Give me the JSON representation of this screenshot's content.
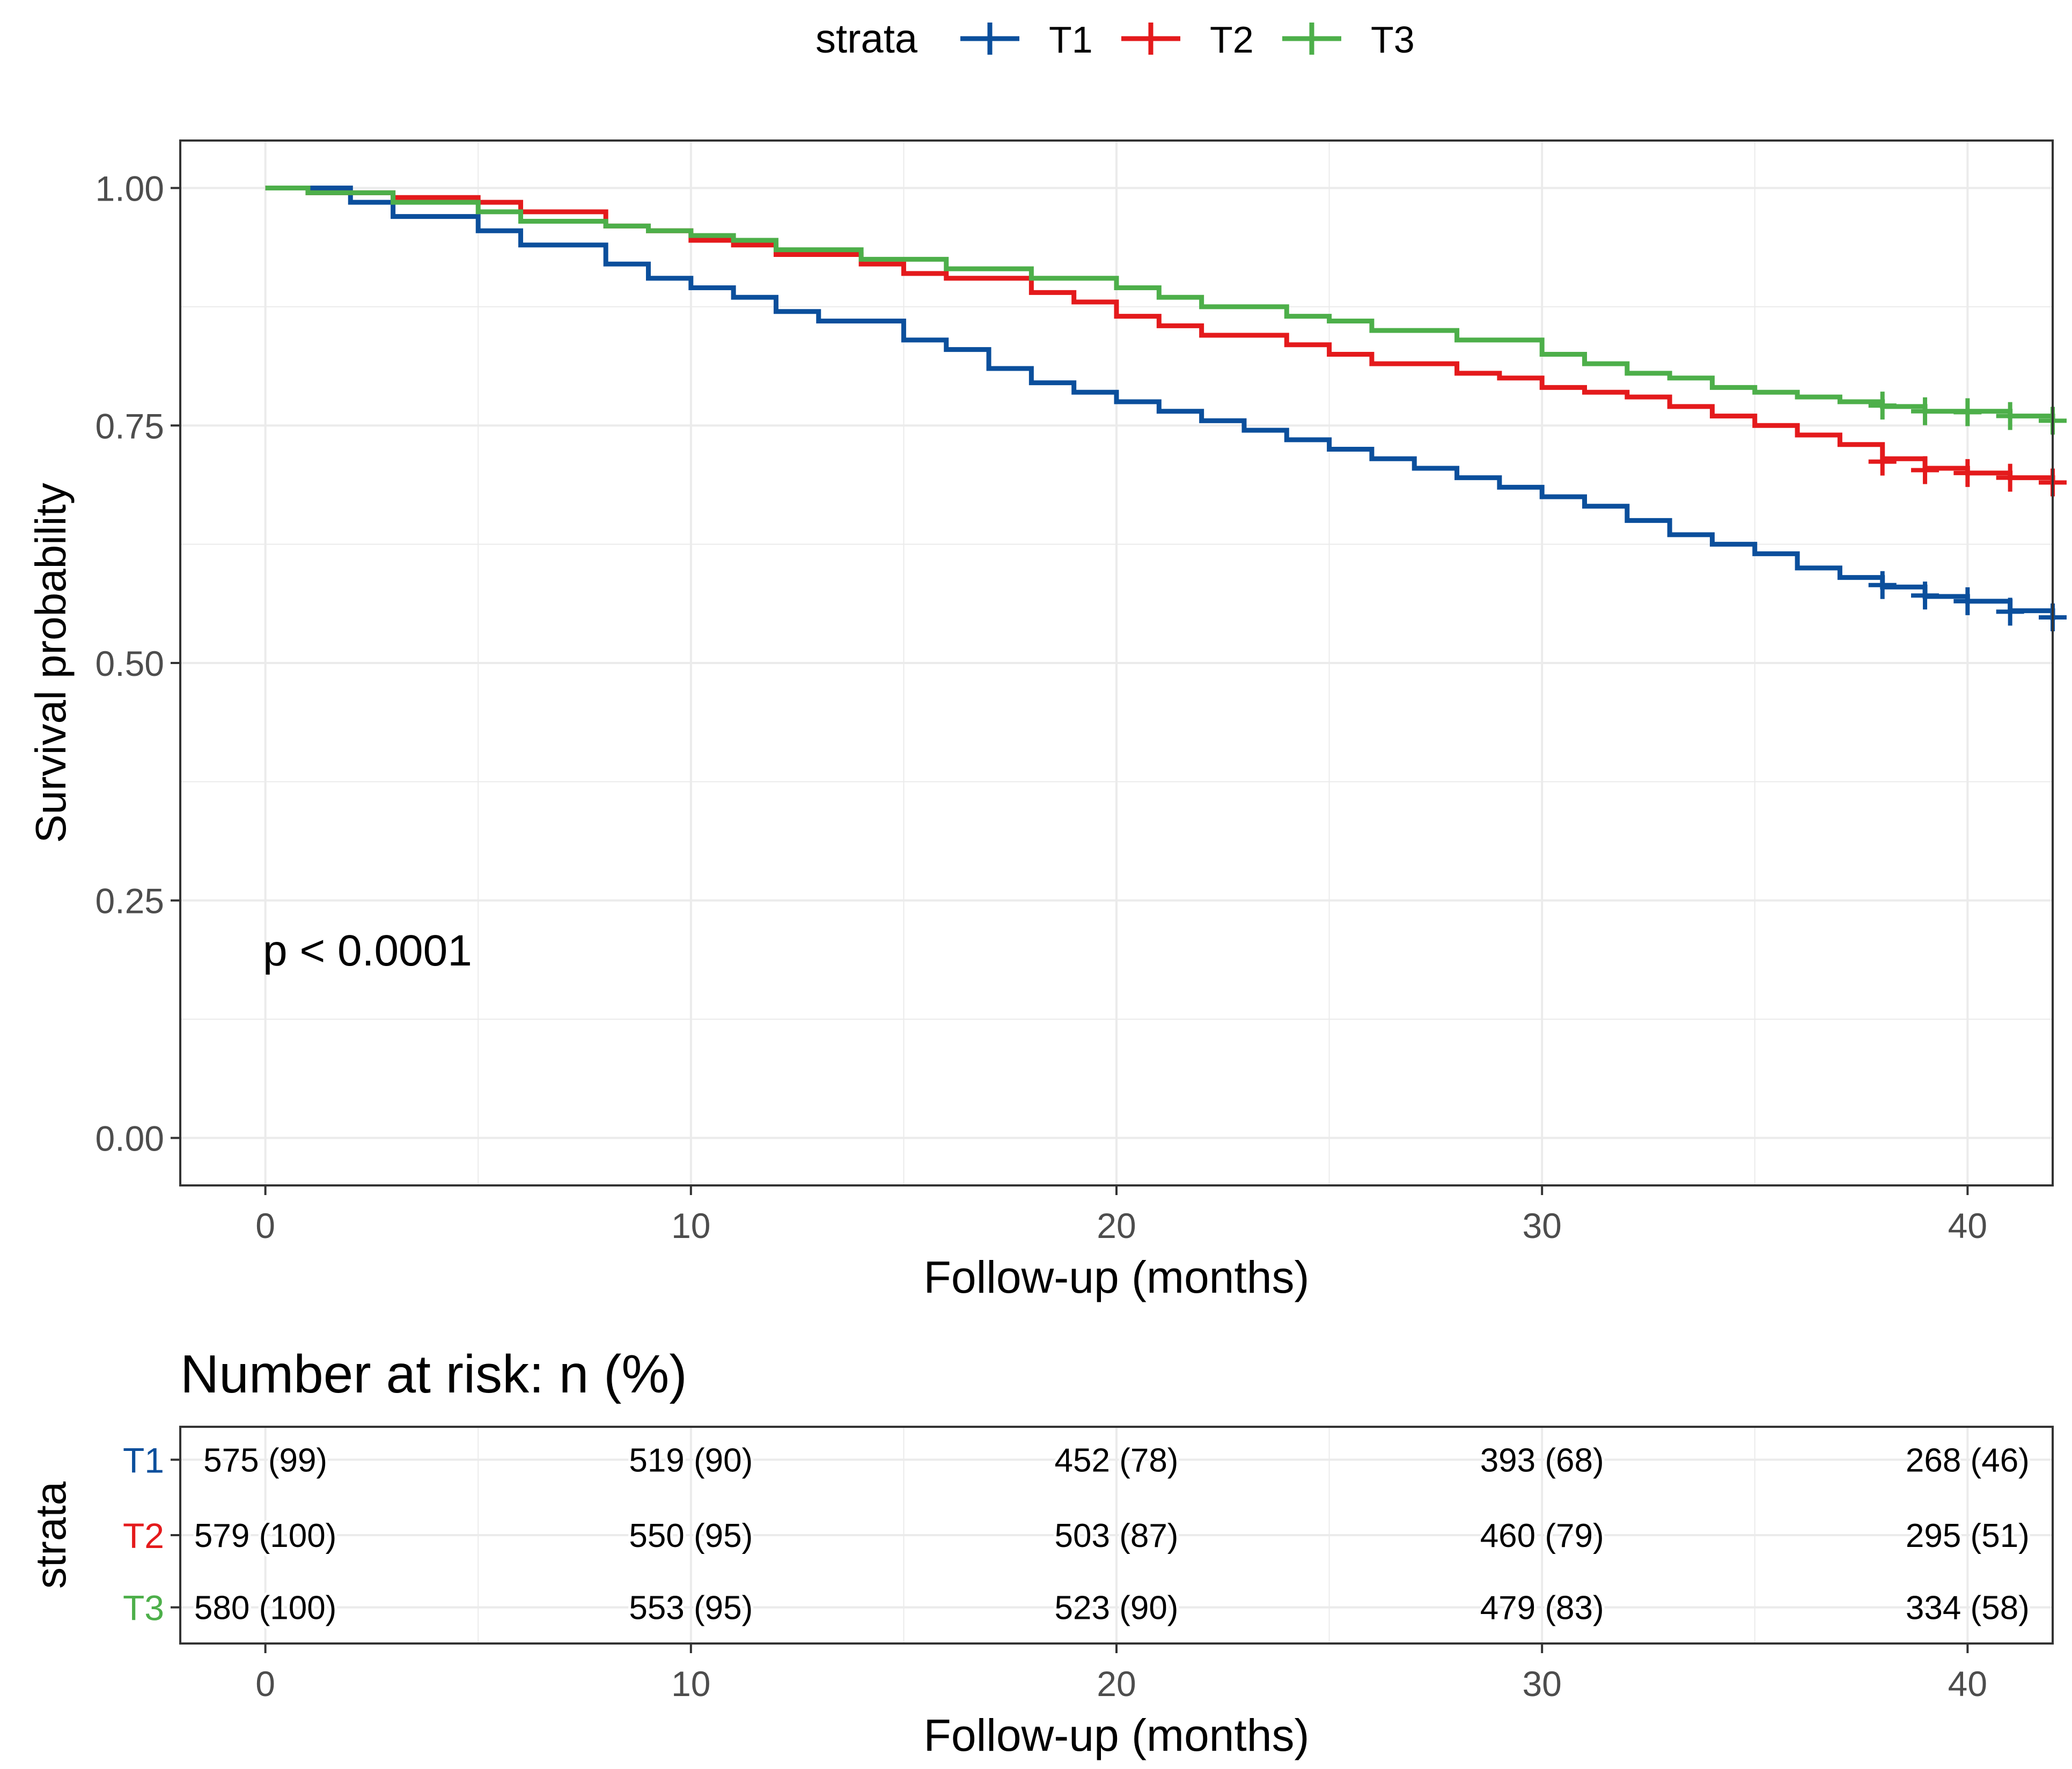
{
  "chart_data": {
    "type": "line",
    "subtype": "kaplan-meier step",
    "legend": {
      "title": "strata",
      "position": "top",
      "entries": [
        "T1",
        "T2",
        "T3"
      ]
    },
    "colors": {
      "T1": "#0b4f9c",
      "T2": "#e41a1c",
      "T3": "#4daf4a",
      "grid": "#ebebeb",
      "axis_text": "#4d4d4d"
    },
    "xlabel": "Follow-up (months)",
    "ylabel": "Survival probability",
    "xlim": [
      -2,
      42
    ],
    "ylim": [
      -0.05,
      1.05
    ],
    "xticks": [
      0,
      10,
      20,
      30,
      40
    ],
    "xtick_labels": [
      "0",
      "10",
      "20",
      "30",
      "40"
    ],
    "yticks": [
      0,
      0.25,
      0.5,
      0.75,
      1
    ],
    "ytick_labels": [
      "0.00",
      "0.25",
      "0.50",
      "0.75",
      "1.00"
    ],
    "grid": true,
    "annotation": "p < 0.0001",
    "series": [
      {
        "name": "T1",
        "x": [
          0,
          2,
          3,
          5,
          6,
          8,
          9,
          10,
          11,
          12,
          13,
          15,
          16,
          17,
          18,
          19,
          20,
          21,
          22,
          23,
          24,
          25,
          26,
          27,
          28,
          29,
          30,
          31,
          32,
          33,
          34,
          35,
          36,
          37,
          38,
          39,
          40,
          41,
          42
        ],
        "y": [
          1.0,
          0.985,
          0.97,
          0.955,
          0.94,
          0.92,
          0.905,
          0.895,
          0.885,
          0.87,
          0.86,
          0.84,
          0.83,
          0.81,
          0.795,
          0.785,
          0.775,
          0.765,
          0.755,
          0.745,
          0.735,
          0.725,
          0.715,
          0.705,
          0.695,
          0.685,
          0.675,
          0.665,
          0.65,
          0.635,
          0.625,
          0.615,
          0.6,
          0.59,
          0.58,
          0.57,
          0.565,
          0.555,
          0.545
        ],
        "censor_x": [
          38,
          39,
          40,
          41,
          42
        ],
        "censor_y": [
          0.582,
          0.571,
          0.565,
          0.554,
          0.548
        ]
      },
      {
        "name": "T2",
        "x": [
          0,
          1,
          3,
          5,
          6,
          8,
          9,
          10,
          11,
          12,
          14,
          15,
          16,
          18,
          19,
          20,
          21,
          22,
          24,
          25,
          26,
          28,
          29,
          30,
          31,
          32,
          33,
          34,
          35,
          36,
          37,
          38,
          39,
          40,
          41,
          42
        ],
        "y": [
          1.0,
          0.995,
          0.99,
          0.985,
          0.975,
          0.96,
          0.955,
          0.945,
          0.94,
          0.93,
          0.92,
          0.91,
          0.905,
          0.89,
          0.88,
          0.865,
          0.855,
          0.845,
          0.835,
          0.825,
          0.815,
          0.805,
          0.8,
          0.79,
          0.785,
          0.78,
          0.77,
          0.76,
          0.75,
          0.74,
          0.73,
          0.715,
          0.705,
          0.7,
          0.695,
          0.69
        ],
        "censor_x": [
          38,
          39,
          40,
          41,
          42
        ],
        "censor_y": [
          0.712,
          0.703,
          0.7,
          0.695,
          0.69
        ]
      },
      {
        "name": "T3",
        "x": [
          0,
          1,
          3,
          5,
          6,
          8,
          9,
          10,
          11,
          12,
          14,
          16,
          18,
          20,
          21,
          22,
          24,
          25,
          26,
          28,
          30,
          31,
          32,
          33,
          34,
          35,
          36,
          37,
          38,
          39,
          40,
          41,
          42
        ],
        "y": [
          1.0,
          0.995,
          0.985,
          0.975,
          0.965,
          0.96,
          0.955,
          0.95,
          0.945,
          0.935,
          0.925,
          0.915,
          0.905,
          0.895,
          0.885,
          0.875,
          0.865,
          0.86,
          0.85,
          0.84,
          0.825,
          0.815,
          0.805,
          0.8,
          0.79,
          0.785,
          0.78,
          0.775,
          0.77,
          0.765,
          0.765,
          0.76,
          0.755
        ],
        "censor_x": [
          38,
          39,
          40,
          41,
          42
        ],
        "censor_y": [
          0.771,
          0.765,
          0.764,
          0.76,
          0.755
        ]
      }
    ],
    "risk_table": {
      "title": "Number at risk: n (%)",
      "ylabel": "strata",
      "xlabel": "Follow-up (months)",
      "times": [
        0,
        10,
        20,
        30,
        40
      ],
      "rows": [
        {
          "name": "T1",
          "values": [
            "575 (99)",
            "519 (90)",
            "452 (78)",
            "393 (68)",
            "268 (46)"
          ]
        },
        {
          "name": "T2",
          "values": [
            "579 (100)",
            "550 (95)",
            "503 (87)",
            "460 (79)",
            "295 (51)"
          ]
        },
        {
          "name": "T3",
          "values": [
            "580 (100)",
            "553 (95)",
            "523 (90)",
            "479 (83)",
            "334 (58)"
          ]
        }
      ]
    }
  }
}
